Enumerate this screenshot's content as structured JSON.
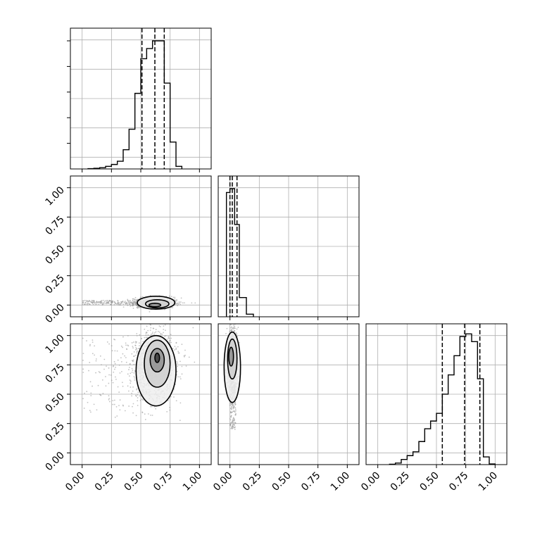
{
  "chart_data": {
    "type": "corner",
    "parameters": 3,
    "axis_range": [
      -0.1,
      1.1
    ],
    "x_tick_labels": [
      "0.00",
      "0.25",
      "0.50",
      "0.75",
      "1.00"
    ],
    "y_tick_labels": [
      "0.00",
      "0.25",
      "0.50",
      "0.75",
      "1.00"
    ],
    "x_ticks": [
      0.0,
      0.25,
      0.5,
      0.75,
      1.0
    ],
    "y_ticks": [
      0.0,
      0.25,
      0.5,
      0.75,
      1.0
    ],
    "grid": true,
    "colors": {
      "line": "#000000",
      "grid": "#b0b0b0",
      "scatter": "#9a9a9a"
    },
    "histograms": [
      {
        "parameter": 1,
        "quantiles": [
          0.51,
          0.62,
          0.7
        ],
        "bins": [
          {
            "x0": 0.05,
            "x1": 0.1,
            "h": 0.002
          },
          {
            "x0": 0.1,
            "x1": 0.15,
            "h": 0.005
          },
          {
            "x0": 0.15,
            "x1": 0.2,
            "h": 0.01
          },
          {
            "x0": 0.2,
            "x1": 0.25,
            "h": 0.02
          },
          {
            "x0": 0.25,
            "x1": 0.3,
            "h": 0.035
          },
          {
            "x0": 0.3,
            "x1": 0.35,
            "h": 0.06
          },
          {
            "x0": 0.35,
            "x1": 0.4,
            "h": 0.15
          },
          {
            "x0": 0.4,
            "x1": 0.45,
            "h": 0.31
          },
          {
            "x0": 0.45,
            "x1": 0.5,
            "h": 0.59
          },
          {
            "x0": 0.5,
            "x1": 0.55,
            "h": 0.86
          },
          {
            "x0": 0.55,
            "x1": 0.6,
            "h": 0.94
          },
          {
            "x0": 0.6,
            "x1": 0.65,
            "h": 1.0
          },
          {
            "x0": 0.65,
            "x1": 0.7,
            "h": 1.0
          },
          {
            "x0": 0.7,
            "x1": 0.75,
            "h": 0.67
          },
          {
            "x0": 0.75,
            "x1": 0.8,
            "h": 0.21
          },
          {
            "x0": 0.8,
            "x1": 0.85,
            "h": 0.02
          }
        ]
      },
      {
        "parameter": 2,
        "quantiles": [
          0.0,
          0.02,
          0.06
        ],
        "bins": [
          {
            "x0": -0.03,
            "x1": 0.0,
            "h": 0.97
          },
          {
            "x0": 0.0,
            "x1": 0.04,
            "h": 1.0
          },
          {
            "x0": 0.04,
            "x1": 0.08,
            "h": 0.72
          },
          {
            "x0": 0.08,
            "x1": 0.14,
            "h": 0.15
          },
          {
            "x0": 0.14,
            "x1": 0.2,
            "h": 0.02
          }
        ]
      },
      {
        "parameter": 3,
        "quantiles": [
          0.55,
          0.74,
          0.87
        ],
        "bins": [
          {
            "x0": 0.1,
            "x1": 0.15,
            "h": 0.003
          },
          {
            "x0": 0.15,
            "x1": 0.2,
            "h": 0.012
          },
          {
            "x0": 0.2,
            "x1": 0.25,
            "h": 0.04
          },
          {
            "x0": 0.25,
            "x1": 0.3,
            "h": 0.07
          },
          {
            "x0": 0.3,
            "x1": 0.35,
            "h": 0.1
          },
          {
            "x0": 0.35,
            "x1": 0.4,
            "h": 0.18
          },
          {
            "x0": 0.4,
            "x1": 0.45,
            "h": 0.28
          },
          {
            "x0": 0.45,
            "x1": 0.5,
            "h": 0.34
          },
          {
            "x0": 0.5,
            "x1": 0.55,
            "h": 0.4
          },
          {
            "x0": 0.55,
            "x1": 0.6,
            "h": 0.55
          },
          {
            "x0": 0.6,
            "x1": 0.65,
            "h": 0.7
          },
          {
            "x0": 0.65,
            "x1": 0.7,
            "h": 0.85
          },
          {
            "x0": 0.7,
            "x1": 0.75,
            "h": 1.0
          },
          {
            "x0": 0.75,
            "x1": 0.8,
            "h": 1.02
          },
          {
            "x0": 0.8,
            "x1": 0.85,
            "h": 0.96
          },
          {
            "x0": 0.85,
            "x1": 0.9,
            "h": 0.67
          },
          {
            "x0": 0.9,
            "x1": 0.95,
            "h": 0.06
          },
          {
            "x0": 0.95,
            "x1": 1.0,
            "h": 0.005
          }
        ]
      }
    ],
    "joint": [
      {
        "x_param": 1,
        "y_param": 2,
        "center": [
          0.62,
          0.02
        ],
        "spread": [
          0.09,
          0.02
        ],
        "tail": {
          "x": [
            0.0,
            0.45
          ],
          "y": [
            0.0,
            0.04
          ]
        },
        "contours": [
          {
            "cx": 0.63,
            "cy": 0.02,
            "rx": 0.16,
            "ry": 0.055
          },
          {
            "cx": 0.64,
            "cy": 0.01,
            "rx": 0.1,
            "ry": 0.035
          },
          {
            "cx": 0.62,
            "cy": 0.0,
            "rx": 0.05,
            "ry": 0.015
          }
        ]
      },
      {
        "x_param": 1,
        "y_param": 3,
        "center": [
          0.62,
          0.74
        ],
        "spread": [
          0.09,
          0.15
        ],
        "tail": {
          "x": [
            0.0,
            0.55
          ],
          "y": [
            0.3,
            1.0
          ]
        },
        "contours": [
          {
            "cx": 0.63,
            "cy": 0.7,
            "rx": 0.17,
            "ry": 0.3
          },
          {
            "cx": 0.64,
            "cy": 0.76,
            "rx": 0.11,
            "ry": 0.2
          },
          {
            "cx": 0.64,
            "cy": 0.79,
            "rx": 0.06,
            "ry": 0.1
          },
          {
            "cx": 0.64,
            "cy": 0.81,
            "rx": 0.02,
            "ry": 0.04
          }
        ]
      },
      {
        "x_param": 2,
        "y_param": 3,
        "center": [
          0.02,
          0.8
        ],
        "spread": [
          0.02,
          0.12
        ],
        "tail": {
          "x": [
            0.0,
            0.05
          ],
          "y": [
            0.2,
            0.6
          ]
        },
        "contours": [
          {
            "cx": 0.02,
            "cy": 0.73,
            "rx": 0.07,
            "ry": 0.3
          },
          {
            "cx": 0.02,
            "cy": 0.8,
            "rx": 0.04,
            "ry": 0.17
          },
          {
            "cx": 0.01,
            "cy": 0.82,
            "rx": 0.02,
            "ry": 0.08
          }
        ]
      }
    ]
  }
}
